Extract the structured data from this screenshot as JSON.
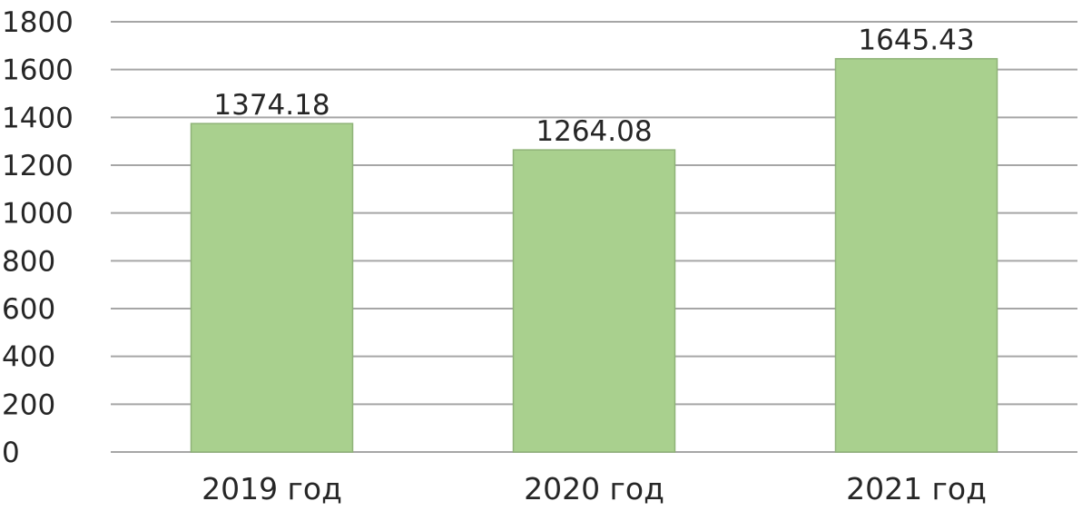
{
  "chart_data": {
    "type": "bar",
    "categories": [
      "2019 год",
      "2020 год",
      "2021 год"
    ],
    "values": [
      1374.18,
      1264.08,
      1645.43
    ],
    "value_labels": [
      "1374.18",
      "1264.08",
      "1645.43"
    ],
    "ylim": [
      0,
      1800
    ],
    "yticks": [
      0,
      200,
      400,
      600,
      800,
      1000,
      1200,
      1400,
      1600,
      1800
    ],
    "grid": true,
    "legend": "none",
    "colors": {
      "bar_fill": "#a9d08e",
      "bar_stroke": "#8fb378",
      "grid": "#a6a6a6",
      "text": "#262626"
    }
  }
}
